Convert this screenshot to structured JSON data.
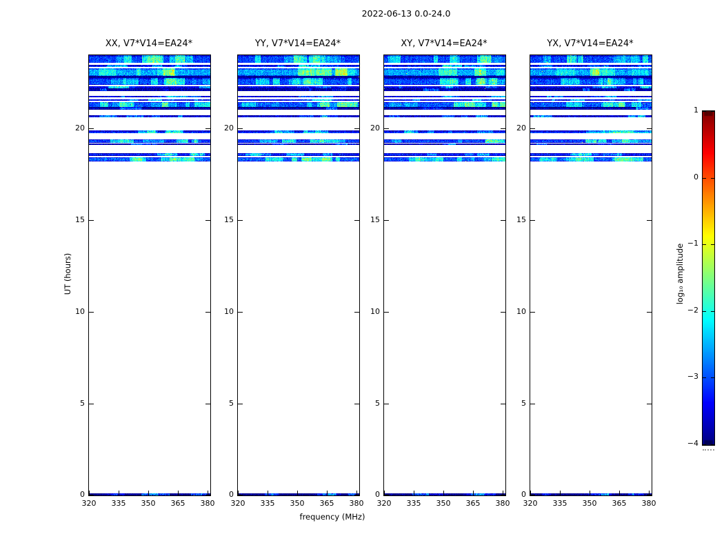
{
  "figure": {
    "title": "2022-06-13 0.0-24.0",
    "xlabel": "frequency (MHz)",
    "ylabel": "UT (hours)"
  },
  "panels": [
    {
      "title": "XX, V7*V14=EA24*"
    },
    {
      "title": "YY, V7*V14=EA24*"
    },
    {
      "title": "XY, V7*V14=EA24*"
    },
    {
      "title": "YX, V7*V14=EA24*"
    }
  ],
  "axes": {
    "x_ticks_mhz": [
      320,
      335,
      350,
      365,
      380
    ],
    "x_tick_labels": [
      "320",
      "335",
      "350",
      "365",
      "380"
    ],
    "x_range_mhz": [
      320,
      381.3
    ],
    "y_ticks_hours": [
      0,
      5,
      10,
      15,
      20
    ],
    "y_tick_labels": [
      "0",
      "5",
      "10",
      "15",
      "20"
    ],
    "y_range_hours": [
      0,
      24
    ]
  },
  "colorbar": {
    "label": "log₁₀ amplitude",
    "ticks": [
      1,
      0,
      -1,
      -2,
      -3,
      -4
    ],
    "tick_labels": [
      "1",
      "0",
      "−1",
      "−2",
      "−3",
      "−4"
    ],
    "vmin": -4,
    "vmax": 1,
    "colormap": "jet"
  },
  "chart_data": {
    "type": "heatmap",
    "title": "2022-06-13 0.0-24.0",
    "xlabel": "frequency (MHz)",
    "ylabel": "UT (hours)",
    "panels": [
      "XX, V7*V14=EA24*",
      "YY, V7*V14=EA24*",
      "XY, V7*V14=EA24*",
      "YX, V7*V14=EA24*"
    ],
    "x_range_mhz": [
      320,
      381.3
    ],
    "y_range_hours": [
      0,
      24
    ],
    "value_scale": "log10 amplitude",
    "value_range": [
      -4,
      1
    ],
    "colormap": "jet",
    "no_data_color": "white",
    "bands": [
      {
        "h_start": 23.57,
        "h_end": 24.0,
        "log10_amp": -3.05,
        "patchiness": 0.5
      },
      {
        "h_start": 23.35,
        "h_end": 23.48,
        "log10_amp": -3.1,
        "patchiness": 0.3
      },
      {
        "h_start": 22.88,
        "h_end": 23.29,
        "log10_amp": -2.55,
        "patchiness": 0.35
      },
      {
        "h_start": 22.77,
        "h_end": 22.88,
        "log10_amp": -3.75,
        "patchiness": 0.0
      },
      {
        "h_start": 22.38,
        "h_end": 22.76,
        "log10_amp": -3.0,
        "patchiness": 0.5
      },
      {
        "h_start": 22.19,
        "h_end": 22.3,
        "log10_amp": -3.05,
        "patchiness": 0.3
      },
      {
        "h_start": 22.04,
        "h_end": 22.19,
        "log10_amp": -3.55,
        "patchiness": 0.15
      },
      {
        "h_start": 21.7,
        "h_end": 21.78,
        "log10_amp": -3.05,
        "patchiness": 0.3
      },
      {
        "h_start": 21.52,
        "h_end": 21.6,
        "log10_amp": -3.0,
        "patchiness": 0.3
      },
      {
        "h_start": 21.17,
        "h_end": 21.45,
        "log10_amp": -2.95,
        "patchiness": 0.55
      },
      {
        "h_start": 21.03,
        "h_end": 21.17,
        "log10_amp": -3.6,
        "patchiness": 0.1
      },
      {
        "h_start": 20.6,
        "h_end": 20.72,
        "log10_amp": -3.3,
        "patchiness": 0.25
      },
      {
        "h_start": 19.74,
        "h_end": 19.9,
        "log10_amp": -3.15,
        "patchiness": 0.4
      },
      {
        "h_start": 19.24,
        "h_end": 19.42,
        "log10_amp": -3.05,
        "patchiness": 0.45
      },
      {
        "h_start": 19.11,
        "h_end": 19.17,
        "log10_amp": -3.35,
        "patchiness": 0.2
      },
      {
        "h_start": 18.52,
        "h_end": 18.67,
        "log10_amp": -3.25,
        "patchiness": 0.3
      },
      {
        "h_start": 18.2,
        "h_end": 18.45,
        "log10_amp": -2.9,
        "patchiness": 0.55
      },
      {
        "h_start": 0.0,
        "h_end": 0.1,
        "log10_amp": -3.55,
        "patchiness": 0.35
      }
    ]
  }
}
